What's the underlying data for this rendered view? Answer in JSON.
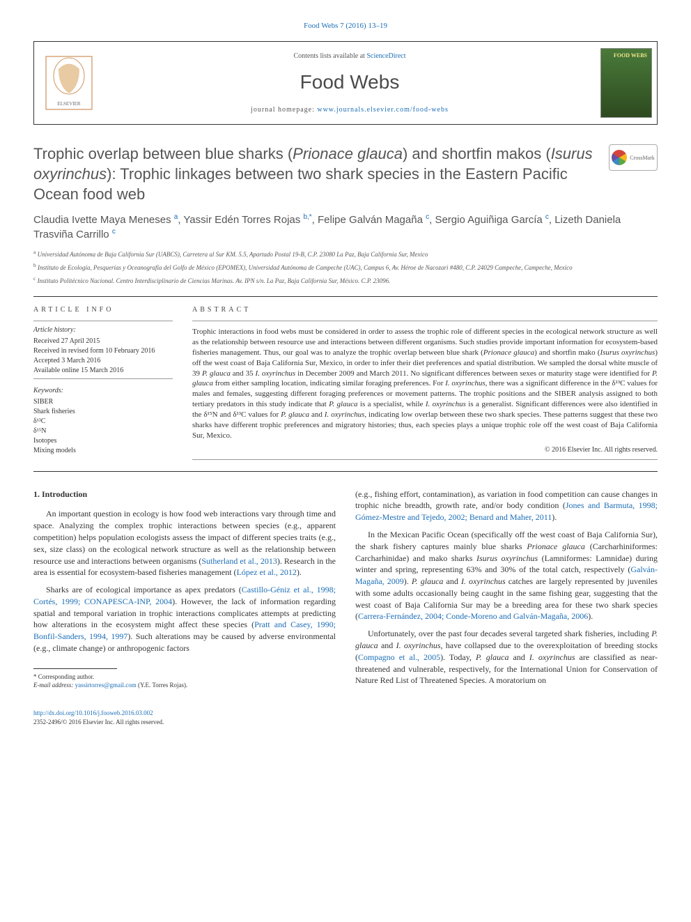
{
  "top_link": "Food Webs 7 (2016) 13–19",
  "header": {
    "contents_text": "Contents lists available at ",
    "contents_link": "ScienceDirect",
    "journal": "Food Webs",
    "homepage_label": "journal homepage: ",
    "homepage_url": "www.journals.elsevier.com/food-webs",
    "cover_title": "FOOD WEBS"
  },
  "title_parts": [
    "Trophic overlap between blue sharks (",
    "Prionace glauca",
    ") and shortfin makos (",
    "Isurus oxyrinchus",
    "): Trophic linkages between two shark species in the Eastern Pacific Ocean food web"
  ],
  "crossmark": "CrossMark",
  "authors_html": "Claudia Ivette Maya Meneses <sup>a</sup>, Yassir Edén Torres Rojas <sup>b,*</sup>, Felipe Galván Magaña <sup>c</sup>, Sergio Aguiñiga García <sup>c</sup>, Lizeth Daniela Trasviña Carrillo <sup>c</sup>",
  "affiliations": [
    {
      "sup": "a",
      "text": "Universidad Autónoma de Baja California Sur (UABCS), Carretera al Sur KM. 5.5, Apartado Postal 19-B, C.P. 23080 La Paz, Baja California Sur, Mexico"
    },
    {
      "sup": "b",
      "text": "Instituto de Ecología, Pesquerías y Oceanografía del Golfo de México (EPOMEX), Universidad Autónoma de Campeche (UAC), Campus 6, Av. Héroe de Nacozari #480, C.P. 24029 Campeche, Campeche, Mexico"
    },
    {
      "sup": "c",
      "text": "Instituto Politécnico Nacional. Centro Interdisciplinario de Ciencias Marinas. Av. IPN s/n. La Paz, Baja California Sur, México. C.P. 23096."
    }
  ],
  "info": {
    "heading": "ARTICLE INFO",
    "history_label": "Article history:",
    "history": [
      "Received 27 April 2015",
      "Received in revised form 10 February 2016",
      "Accepted 3 March 2016",
      "Available online 15 March 2016"
    ],
    "keywords_label": "Keywords:",
    "keywords": [
      "SIBER",
      "Shark fisheries",
      "δ¹³C",
      "δ¹⁵N",
      "Isotopes",
      "Mixing models"
    ]
  },
  "ab": {
    "heading": "ABSTRACT",
    "p1": "Trophic interactions in food webs must be considered in order to assess the trophic role of different species in the ecological network structure as well as the relationship between resource use and interactions between different organisms. Such studies provide important information for ecosystem-based fisheries management. Thus, our goal was to analyze the trophic overlap between blue shark (",
    "sp1": "Prionace glauca",
    "p2": ") and shortfin mako (",
    "sp2": "Isurus oxyrinchus",
    "p3": ") off the west coast of Baja California Sur, Mexico, in order to infer their diet preferences and spatial distribution. We sampled the dorsal white muscle of 39 ",
    "sp3": "P. glauca",
    "p4": " and 35 ",
    "sp4": "I. oxyrinchus",
    "p5": " in December 2009 and March 2011. No significant differences between sexes or maturity stage were identified for ",
    "sp5": "P. glauca",
    "p6": " from either sampling location, indicating similar foraging preferences. For ",
    "sp6": "I. oxyrinchus",
    "p7": ", there was a significant difference in the δ¹³C values for males and females, suggesting different foraging preferences or movement patterns. The trophic positions and the SIBER analysis assigned to both tertiary predators in this study indicate that ",
    "sp7": "P. glauca",
    "p8": " is a specialist, while ",
    "sp8": "I. oxyrinchus",
    "p9": " is a generalist. Significant differences were also identified in the δ¹⁵N and δ¹³C values for ",
    "sp9": "P. glauca",
    "p10": " and ",
    "sp10": "I. oxyrinchus",
    "p11": ", indicating low overlap between these two shark species. These patterns suggest that these two sharks have different trophic preferences and migratory histories; thus, each species plays a unique trophic role off the west coast of Baja California Sur, Mexico.",
    "copyright": "© 2016 Elsevier Inc. All rights reserved."
  },
  "intro_heading": "1. Introduction",
  "left": {
    "p1a": "An important question in ecology is how food web interactions vary through time and space. Analyzing the complex trophic interactions between species (e.g., apparent competition) helps population ecologists assess the impact of different species traits (e.g., sex, size class) on the ecological network structure as well as the relationship between resource use and interactions between organisms (",
    "c1": "Sutherland et al., 2013",
    "p1b": "). Research in the area is essential for ecosystem-based fisheries management (",
    "c2": "López et al., 2012",
    "p1c": ").",
    "p2a": "Sharks are of ecological importance as apex predators (",
    "c3": "Castillo-Géniz et al., 1998; Cortés, 1999; CONAPESCA-INP, 2004",
    "p2b": "). However, the lack of information regarding spatial and temporal variation in trophic interactions complicates attempts at predicting how alterations in the ecosystem might affect these species (",
    "c4": "Pratt and Casey, 1990; Bonfil-Sanders, 1994, 1997",
    "p2c": "). Such alterations may be caused by adverse environmental (e.g., climate change) or anthropogenic factors"
  },
  "right": {
    "p1a": "(e.g., fishing effort, contamination), as variation in food competition can cause changes in trophic niche breadth, growth rate, and/or body condition (",
    "c1": "Jones and Barmuta, 1998; Gómez-Mestre and Tejedo, 2002; Benard and Maher, 2011",
    "p1b": ").",
    "p2a": "In the Mexican Pacific Ocean (specifically off the west coast of Baja California Sur), the shark fishery captures mainly blue sharks ",
    "sp1": "Prionace glauca",
    "p2b": " (Carcharhiniformes: Carcharhinidae) and mako sharks ",
    "sp2": "Isurus oxyrinchus",
    "p2c": " (Lamniformes: Lamnidae) during winter and spring, representing 63% and 30% of the total catch, respectively (",
    "c2": "Galván-Magaña, 2009",
    "p2d": "). ",
    "sp3": "P. glauca",
    "p2e": " and ",
    "sp4": "I. oxyrinchus",
    "p2f": " catches are largely represented by juveniles with some adults occasionally being caught in the same fishing gear, suggesting that the west coast of Baja California Sur may be a breeding area for these two shark species (",
    "c3": "Carrera-Fernández, 2004; Conde-Moreno and Galván-Magaña, 2006",
    "p2g": ").",
    "p3a": "Unfortunately, over the past four decades several targeted shark fisheries, including ",
    "sp5": "P. glauca",
    "p3b": " and ",
    "sp6": "I. oxyrinchus",
    "p3c": ", have collapsed due to the overexploitation of breeding stocks (",
    "c4": "Compagno et al., 2005",
    "p3d": "). Today, ",
    "sp7": "P. glauca",
    "p3e": " and ",
    "sp8": "I. oxyrinchus",
    "p3f": " are classified as near-threatened and vulnerable, respectively, for the International Union for Conservation of Nature Red List of Threatened Species. A moratorium on"
  },
  "footnote": {
    "corr": "* Corresponding author.",
    "email_label": "E-mail address: ",
    "email": "yassirtorres@gmail.com",
    "email_suffix": " (Y.E. Torres Rojas)."
  },
  "bottom": {
    "doi": "http://dx.doi.org/10.1016/j.fooweb.2016.03.002",
    "issn": "2352-2496/© 2016 Elsevier Inc. All rights reserved."
  },
  "colors": {
    "link": "#1a6db5",
    "text": "#333333",
    "heading": "#555555"
  }
}
